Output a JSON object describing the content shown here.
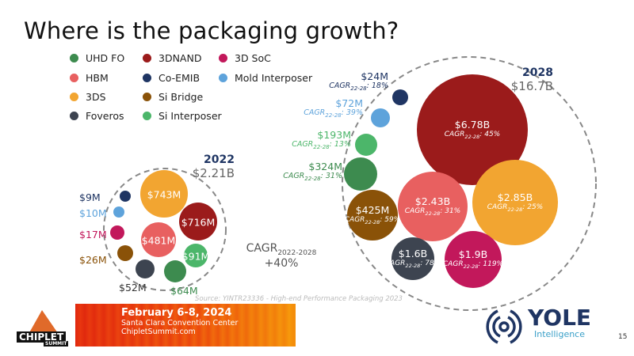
{
  "title": "Where is the packaging growth?",
  "chart_data": {
    "type": "bubble",
    "legend": [
      {
        "name": "UHD FO",
        "color": "#3d8b4f"
      },
      {
        "name": "3DNAND",
        "color": "#9b1b1b"
      },
      {
        "name": "3D SoC",
        "color": "#c2185b"
      },
      {
        "name": "HBM",
        "color": "#e86060"
      },
      {
        "name": "Co-EMIB",
        "color": "#1f3563"
      },
      {
        "name": "Mold Interposer",
        "color": "#5ea3db"
      },
      {
        "name": "3DS",
        "color": "#f2a531"
      },
      {
        "name": "Si Bridge",
        "color": "#8a5208"
      },
      {
        "name": "Foveros",
        "color": "#3d4450"
      },
      {
        "name": "Si Interposer",
        "color": "#4cb66a"
      }
    ],
    "year_2022": {
      "year": "2022",
      "total": "$2.21B",
      "items": [
        {
          "name": "3DS",
          "value": "$743M"
        },
        {
          "name": "3DNAND",
          "value": "$716M"
        },
        {
          "name": "HBM",
          "value": "$481M"
        },
        {
          "name": "Si Interposer",
          "value": "$91M"
        },
        {
          "name": "UHD FO",
          "value": "$64M"
        },
        {
          "name": "Foveros",
          "value": "$52M"
        },
        {
          "name": "Si Bridge",
          "value": "$26M"
        },
        {
          "name": "3D SoC",
          "value": "$17M"
        },
        {
          "name": "Mold Interposer",
          "value": "$10M"
        },
        {
          "name": "Co-EMIB",
          "value": "$9M"
        }
      ]
    },
    "year_2028": {
      "year": "2028",
      "total": "$16.7B",
      "items": [
        {
          "name": "3DNAND",
          "value": "$6.78B",
          "cagr": "45%"
        },
        {
          "name": "3DS",
          "value": "$2.85B",
          "cagr": "25%"
        },
        {
          "name": "HBM",
          "value": "$2.43B",
          "cagr": "31%"
        },
        {
          "name": "3D SoC",
          "value": "$1.9B",
          "cagr": "119%"
        },
        {
          "name": "Foveros",
          "value": "$1.6B",
          "cagr": "78%"
        },
        {
          "name": "Si Bridge",
          "value": "$425M",
          "cagr": "59%"
        },
        {
          "name": "UHD FO",
          "value": "$324M",
          "cagr": "31%"
        },
        {
          "name": "Si Interposer",
          "value": "$193M",
          "cagr": "13%"
        },
        {
          "name": "Mold Interposer",
          "value": "$72M",
          "cagr": "39%"
        },
        {
          "name": "Co-EMIB",
          "value": "$24M",
          "cagr": "18%"
        }
      ]
    },
    "cagr_prefix": "CAGR",
    "cagr_sub": "22-28",
    "overall_cagr": {
      "label": "CAGR",
      "period": "2022-2028",
      "value": "+40%"
    }
  },
  "source": "Source: YINTR23336 - High-end Performance Packaging 2023",
  "footer": {
    "date": "February 6-8, 2024",
    "venue": "Santa Clara Convention Center",
    "url": "ChipletSummit.com",
    "chiplet_logo": "CHIPLET",
    "chiplet_sub": "SUMMIT",
    "yole_name": "YOLE",
    "yole_sub": "Intelligence",
    "page": "15"
  }
}
